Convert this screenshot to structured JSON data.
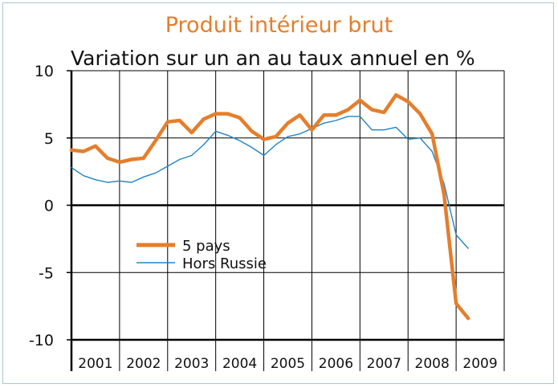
{
  "chart_data": {
    "type": "line",
    "title": "Produit intérieur brut",
    "subtitle": "Variation sur un an au taux annuel en %",
    "ylim": [
      -10,
      10
    ],
    "yticks": [
      10,
      5,
      0,
      -5,
      -10
    ],
    "years": [
      "2001",
      "2002",
      "2003",
      "2004",
      "2005",
      "2006",
      "2007",
      "2008",
      "2009"
    ],
    "grid": true,
    "legend_position": "bottom-left",
    "x": [
      2001.0,
      2001.25,
      2001.5,
      2001.75,
      2002.0,
      2002.25,
      2002.5,
      2002.75,
      2003.0,
      2003.25,
      2003.5,
      2003.75,
      2004.0,
      2004.25,
      2004.5,
      2004.75,
      2005.0,
      2005.25,
      2005.5,
      2005.75,
      2006.0,
      2006.25,
      2006.5,
      2006.75,
      2007.0,
      2007.25,
      2007.5,
      2007.75,
      2008.0,
      2008.25,
      2008.5,
      2008.75,
      2009.0,
      2009.25
    ],
    "series": [
      {
        "name": "5 pays",
        "color": "#e57e2c",
        "width": 4.5,
        "values": [
          4.1,
          4.0,
          4.4,
          3.5,
          3.2,
          3.4,
          3.5,
          4.8,
          6.2,
          6.3,
          5.4,
          6.4,
          6.8,
          6.8,
          6.5,
          5.5,
          4.9,
          5.1,
          6.1,
          6.7,
          5.6,
          6.7,
          6.7,
          7.1,
          7.8,
          7.1,
          6.9,
          8.2,
          7.7,
          6.8,
          5.3,
          0.8,
          -7.3,
          -8.4
        ]
      },
      {
        "name": "Hors Russie",
        "color": "#1f84c8",
        "width": 1.4,
        "values": [
          2.8,
          2.2,
          1.9,
          1.7,
          1.8,
          1.7,
          2.1,
          2.4,
          2.9,
          3.4,
          3.7,
          4.5,
          5.5,
          5.2,
          4.8,
          4.3,
          3.7,
          4.5,
          5.1,
          5.3,
          5.7,
          6.1,
          6.3,
          6.6,
          6.6,
          5.6,
          5.6,
          5.8,
          4.9,
          5.0,
          4.0,
          1.6,
          -2.2,
          -3.2
        ]
      }
    ]
  }
}
